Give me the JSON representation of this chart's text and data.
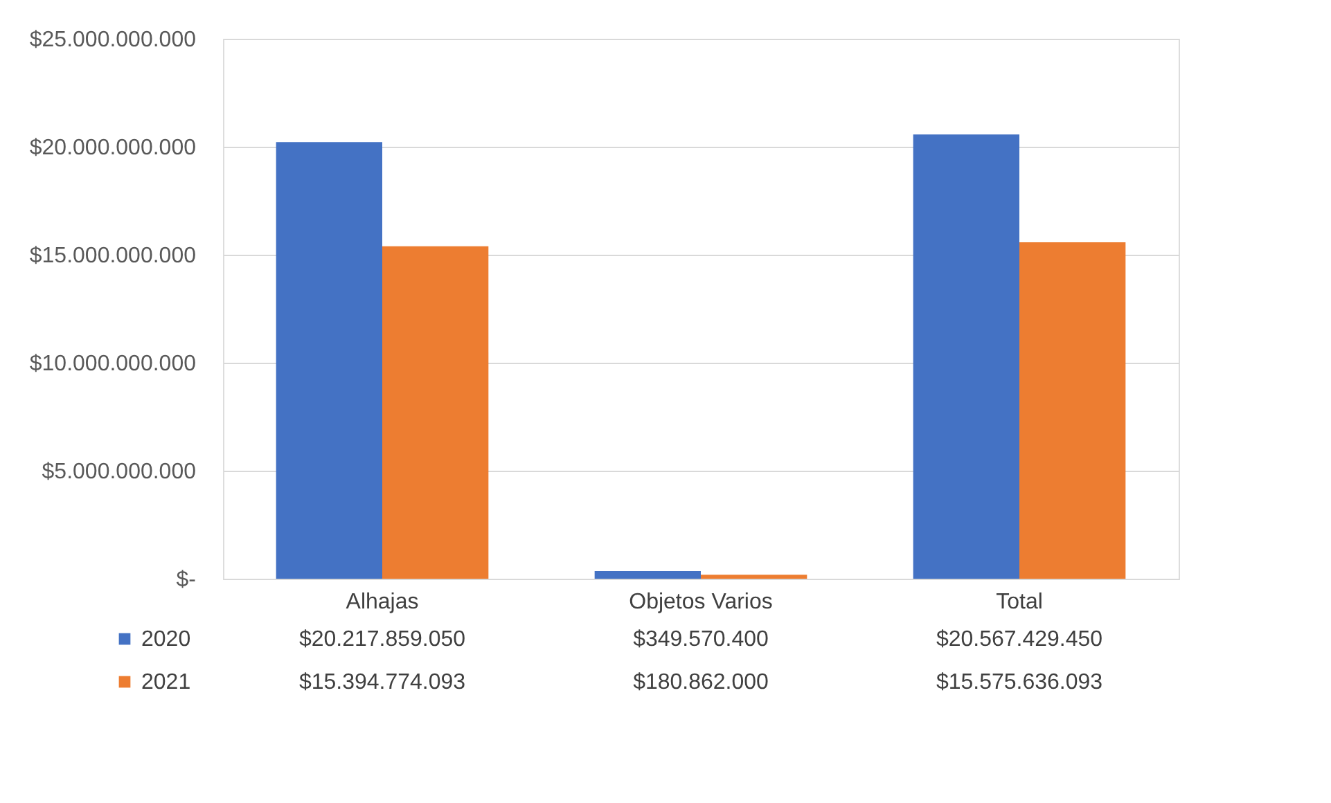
{
  "chart_data": {
    "type": "bar",
    "categories": [
      "Alhajas",
      "Objetos Varios",
      "Total"
    ],
    "series": [
      {
        "name": "2020",
        "color": "#4472c4",
        "values": [
          20217859050,
          349570400,
          20567429450
        ],
        "value_labels": [
          "$20.217.859.050",
          "$349.570.400",
          "$20.567.429.450"
        ]
      },
      {
        "name": "2021",
        "color": "#ed7d31",
        "values": [
          15394774093,
          180862000,
          15575636093
        ],
        "value_labels": [
          "$15.394.774.093",
          "$180.862.000",
          "$15.575.636.093"
        ]
      }
    ],
    "ylim": [
      0,
      25000000000
    ],
    "yticks": [
      {
        "value": 0,
        "label": "$-"
      },
      {
        "value": 5000000000,
        "label": "$5.000.000.000"
      },
      {
        "value": 10000000000,
        "label": "$10.000.000.000"
      },
      {
        "value": 15000000000,
        "label": "$15.000.000.000"
      },
      {
        "value": 20000000000,
        "label": "$20.000.000.000"
      },
      {
        "value": 25000000000,
        "label": "$25.000.000.000"
      }
    ],
    "grid": "y",
    "legend": "bottom",
    "data_labels": true
  }
}
